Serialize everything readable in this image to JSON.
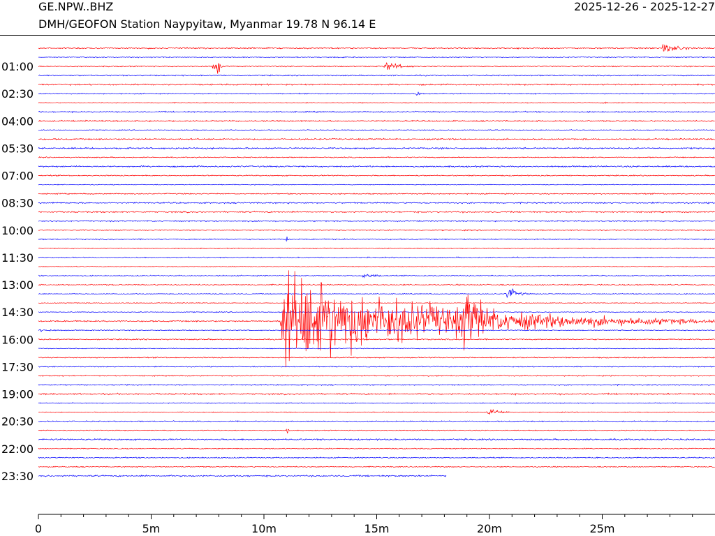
{
  "header": {
    "station_code": "GE.NPW..BHZ",
    "station_description": "DMH/GEOFON Station Naypyitaw, Myanmar  19.78 N 96.14 E",
    "date_range": "2025-12-26 - 2025-12-27"
  },
  "chart_data": {
    "type": "helicorder",
    "title": "GE.NPW..BHZ",
    "subtitle": "DMH/GEOFON Station Naypyitaw, Myanmar  19.78 N 96.14 E",
    "trace_colors": [
      "#ff0000",
      "#0000ff"
    ],
    "row_count": 48,
    "minutes_per_row": 30,
    "row_labels": [
      "01:00",
      "02:30",
      "04:00",
      "05:30",
      "07:00",
      "08:30",
      "10:00",
      "11:30",
      "13:00",
      "14:30",
      "16:00",
      "17:30",
      "19:00",
      "20:30",
      "22:00",
      "23:30"
    ],
    "first_labeled_row": 2,
    "label_every_rows": 3,
    "x_ticks": [
      {
        "value": 0,
        "label": "0"
      },
      {
        "value": 5,
        "label": "5m"
      },
      {
        "value": 10,
        "label": "10m"
      },
      {
        "value": 15,
        "label": "15m"
      },
      {
        "value": 20,
        "label": "20m"
      },
      {
        "value": 25,
        "label": "25m"
      }
    ],
    "xlim": [
      0,
      30
    ],
    "minor_tick_step": 1,
    "data_end": {
      "row": 47,
      "minute": 18.1
    },
    "events": [
      {
        "row": 0,
        "start_min": 27.6,
        "duration_min": 2.4,
        "amplitude": 9,
        "color_index": 0
      },
      {
        "row": 2,
        "start_min": 7.7,
        "duration_min": 0.7,
        "amplitude": 12,
        "color_index": 0
      },
      {
        "row": 2,
        "start_min": 7.9,
        "duration_min": 0.3,
        "amplitude": 34,
        "color_index": 0
      },
      {
        "row": 2,
        "start_min": 15.3,
        "duration_min": 2.0,
        "amplitude": 10,
        "color_index": 0
      },
      {
        "row": 5,
        "start_min": 16.7,
        "duration_min": 0.7,
        "amplitude": 7,
        "color_index": 1
      },
      {
        "row": 6,
        "start_min": 25.0,
        "duration_min": 0.6,
        "amplitude": 4,
        "color_index": 0
      },
      {
        "row": 21,
        "start_min": 10.98,
        "duration_min": 0.12,
        "amplitude": 36,
        "color_index": 0
      },
      {
        "row": 21,
        "start_min": 29.95,
        "duration_min": 0.05,
        "amplitude": 8,
        "color_index": 1
      },
      {
        "row": 25,
        "start_min": 14.3,
        "duration_min": 1.9,
        "amplitude": 6,
        "color_index": 1
      },
      {
        "row": 27,
        "start_min": 20.7,
        "duration_min": 1.3,
        "amplitude": 16,
        "color_index": 1
      },
      {
        "row": 30,
        "start_min": 10.7,
        "duration_min": 19.3,
        "amplitude": 85,
        "color_index": 0
      },
      {
        "row": 30,
        "start_min": 18.7,
        "duration_min": 4.5,
        "amplitude": 62,
        "color_index": 0
      },
      {
        "row": 30,
        "start_min": 14.3,
        "duration_min": 0.3,
        "amplitude": 34,
        "color_index": 0
      },
      {
        "row": 31,
        "start_min": 0.0,
        "duration_min": 2.5,
        "amplitude": 3,
        "color_index": 1
      },
      {
        "row": 36,
        "start_min": 1.0,
        "duration_min": 0.3,
        "amplitude": 4,
        "color_index": 1
      },
      {
        "row": 40,
        "start_min": 19.9,
        "duration_min": 1.6,
        "amplitude": 9,
        "color_index": 1
      },
      {
        "row": 42,
        "start_min": 10.98,
        "duration_min": 0.15,
        "amplitude": 40,
        "color_index": 0
      },
      {
        "row": 44,
        "start_min": 23.5,
        "duration_min": 0.4,
        "amplitude": 3,
        "color_index": 0
      },
      {
        "row": 45,
        "start_min": 24.7,
        "duration_min": 0.6,
        "amplitude": 3,
        "color_index": 0
      }
    ]
  }
}
